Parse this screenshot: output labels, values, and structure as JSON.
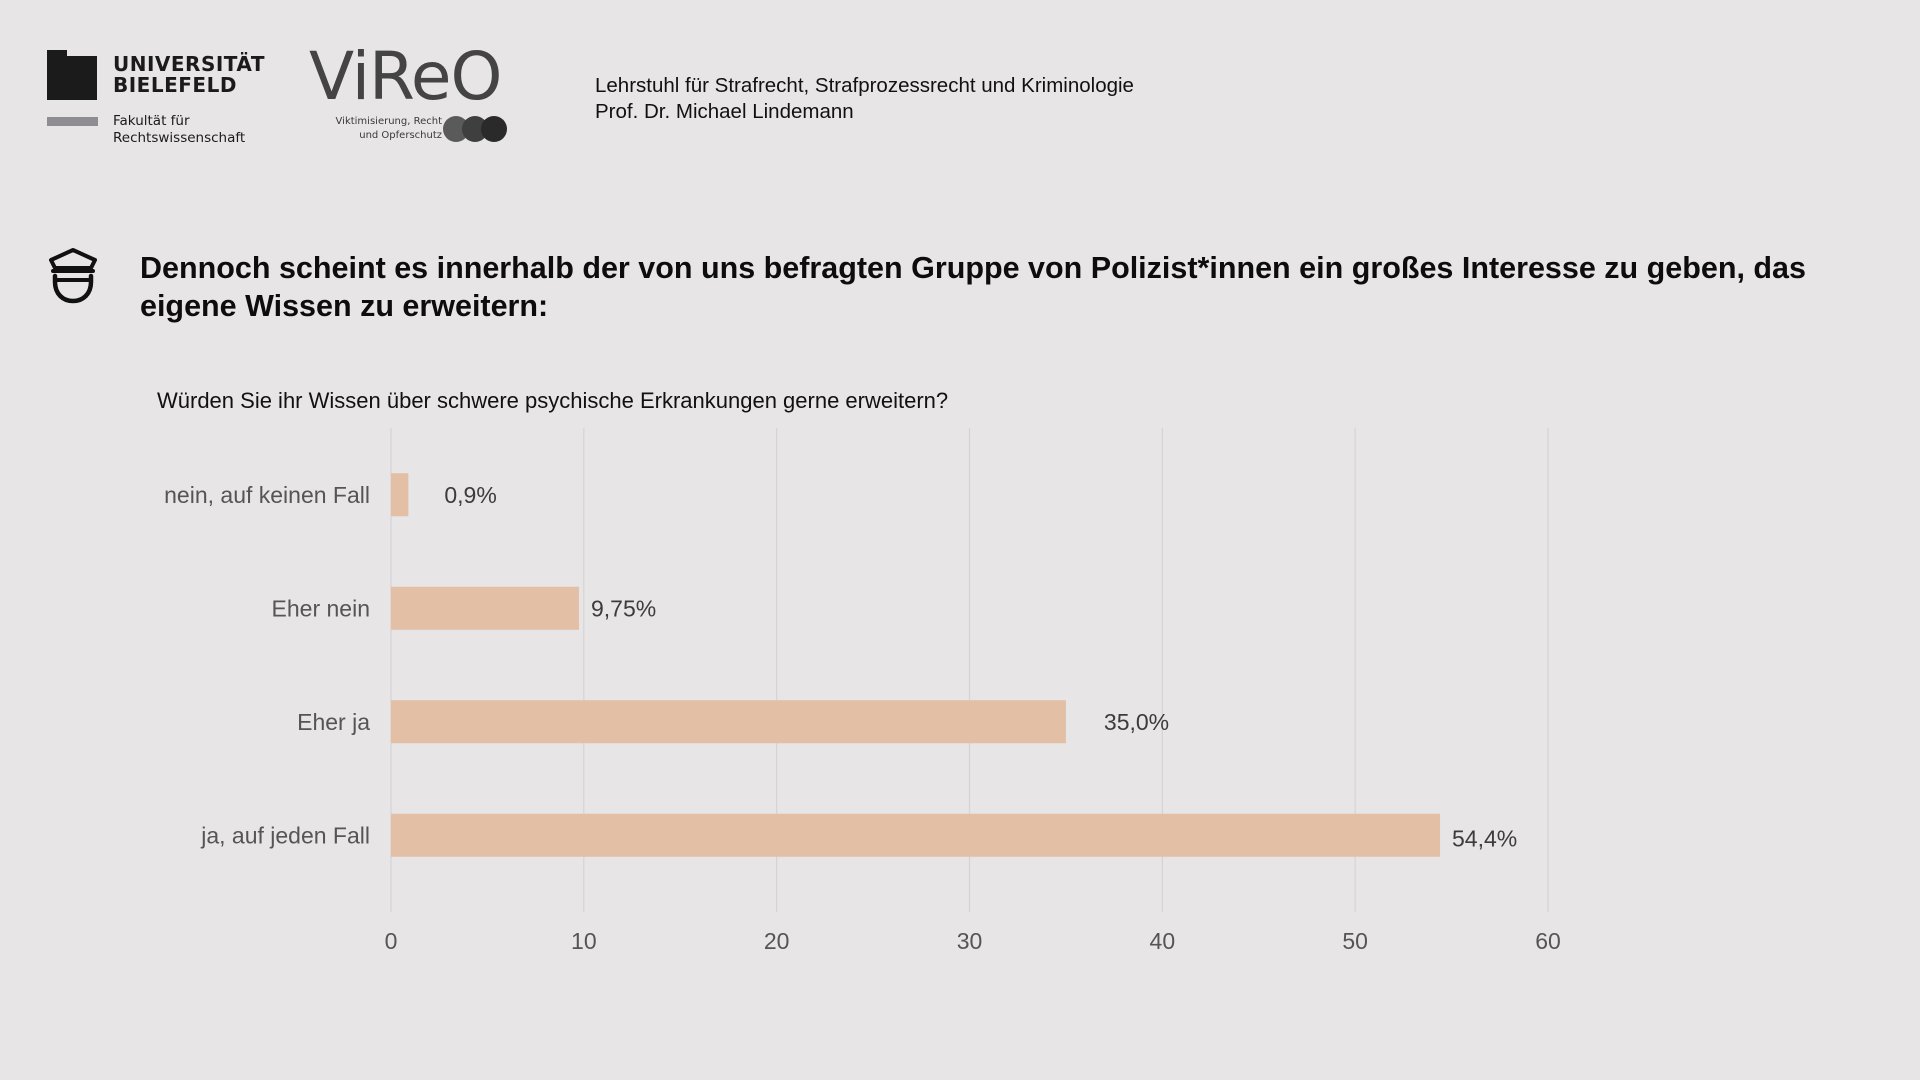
{
  "header": {
    "university": {
      "name": "UNIVERSITÄT\nBIELEFELD",
      "faculty": "Fakultät für\nRechtswissenschaft"
    },
    "vireo": {
      "wordmark": "ViReO",
      "subtitle": "Viktimisierung, Recht\nund Opferschutz"
    },
    "chair": {
      "line1": "Lehrstuhl für Strafrecht, Strafprozessrecht und Kriminologie",
      "line2": "Prof. Dr. Michael Lindemann"
    }
  },
  "headline": "Dennoch scheint es innerhalb der von uns befragten Gruppe von Polizist*innen ein großes Interesse zu geben, das eigene Wissen zu erweitern:",
  "icons": {
    "headline_icon": "police-officer-icon"
  },
  "colors": {
    "background": "#e7e5e6",
    "bar": "#e3bfa6",
    "grid": "#d6d3d4"
  },
  "chart_data": {
    "type": "bar",
    "orientation": "horizontal",
    "title": "Würden Sie ihr Wissen über schwere psychische Erkrankungen gerne erweitern?",
    "categories": [
      "nein, auf keinen Fall",
      "Eher nein",
      "Eher ja",
      "ja, auf jeden Fall"
    ],
    "values": [
      0.9,
      9.75,
      35.0,
      54.4
    ],
    "value_labels": [
      "0,9%",
      "9,75%",
      "35,0%",
      "54,4%"
    ],
    "xlim": [
      0,
      60
    ],
    "xticks": [
      0,
      10,
      20,
      30,
      40,
      50,
      60
    ],
    "xtick_labels": [
      "0",
      "10",
      "20",
      "30",
      "40",
      "50",
      "60"
    ],
    "xlabel": "",
    "ylabel": "",
    "grid": true,
    "legend": "none"
  }
}
